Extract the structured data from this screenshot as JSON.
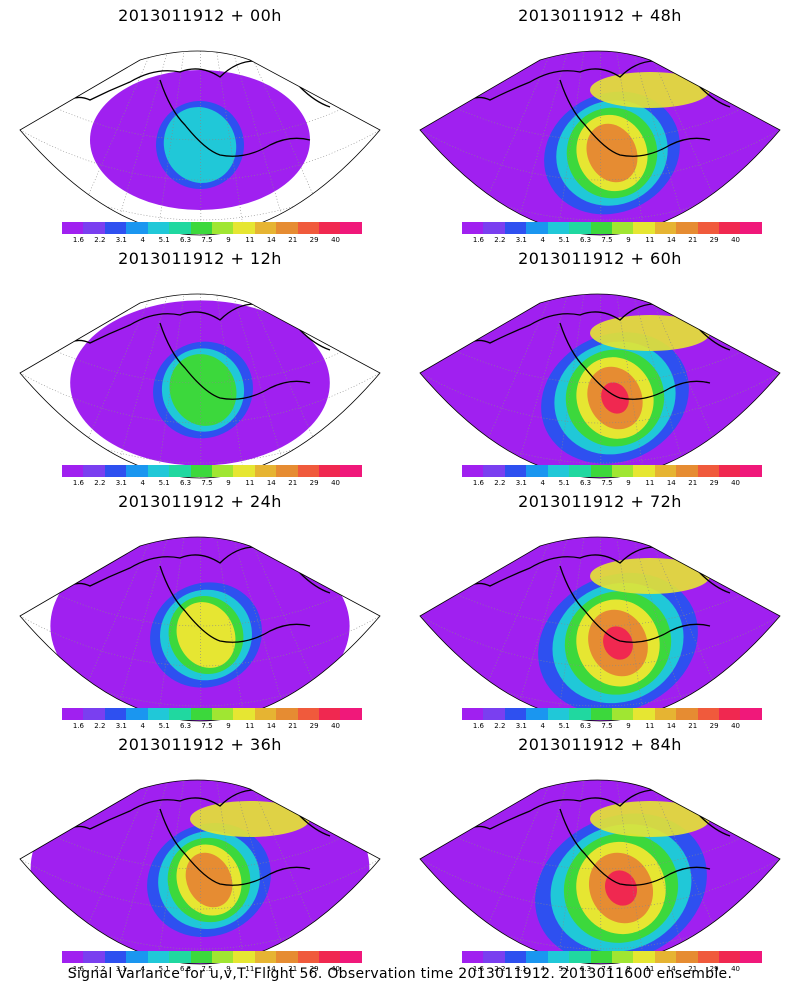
{
  "panels": [
    {
      "title": "2013011912 + 00h",
      "stage": 0
    },
    {
      "title": "2013011912 + 48h",
      "stage": 4
    },
    {
      "title": "2013011912 + 12h",
      "stage": 1
    },
    {
      "title": "2013011912 + 60h",
      "stage": 5
    },
    {
      "title": "2013011912 + 24h",
      "stage": 2
    },
    {
      "title": "2013011912 + 72h",
      "stage": 6
    },
    {
      "title": "2013011912 + 36h",
      "stage": 3
    },
    {
      "title": "2013011912 + 84h",
      "stage": 7
    }
  ],
  "colorbar": {
    "labels": [
      "1.6",
      "2.2",
      "3.1",
      "4",
      "5.1",
      "6.3",
      "7.5",
      "9",
      "11",
      "14",
      "21",
      "29",
      "40"
    ],
    "colors": [
      "#a020f0",
      "#7a3ff0",
      "#2e50f0",
      "#1a96f0",
      "#20c8d8",
      "#20d8a0",
      "#3cd83c",
      "#a0e632",
      "#e6e632",
      "#e6b432",
      "#e68c32",
      "#f05a3c",
      "#f02850",
      "#f0187a"
    ]
  },
  "footer": "Signal Variance for u,v,T. Flight 56. Observation time 2013011912. 2013011600 ensemble."
}
